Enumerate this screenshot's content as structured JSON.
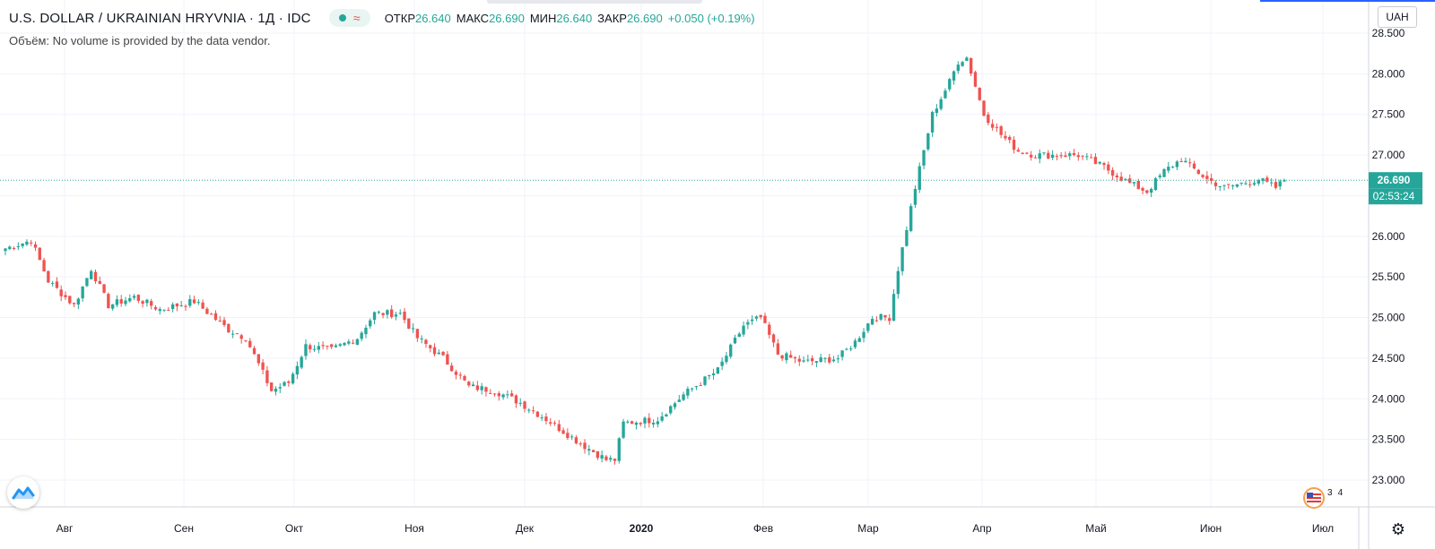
{
  "header": {
    "title": "U.S. DOLLAR / UKRAINIAN HRYVNIA · 1Д · IDC",
    "ohlc": {
      "open_label": "ОТКР",
      "open": "26.640",
      "high_label": "МАКС",
      "high": "26.690",
      "low_label": "МИН",
      "low": "26.640",
      "close_label": "ЗАКР",
      "close": "26.690",
      "change": "+0.050 (+0.19%)"
    }
  },
  "volume_note": "Объём: No volume is provided by the data vendor.",
  "unit_button": "UAH",
  "price_tag": {
    "price": "26.690",
    "countdown": "02:53:24"
  },
  "badge_text": "3   4",
  "colors": {
    "up": "#26a69a",
    "down": "#ef5350",
    "grid": "#f0f3fa",
    "axis_text": "#131722",
    "tag": "#26a69a"
  },
  "icons": {
    "logo": "tradingview-logo-icon",
    "settings": "gear-icon",
    "alert": "wave-icon"
  },
  "chart_data": {
    "type": "candlestick",
    "title": "U.S. DOLLAR / UKRAINIAN HRYVNIA",
    "ylim": [
      22.85,
      28.6
    ],
    "y_ticks": [
      23.0,
      23.5,
      24.0,
      24.5,
      25.0,
      25.5,
      26.0,
      26.5,
      27.0,
      27.5,
      28.0,
      28.5
    ],
    "y_tick_labels": [
      "23.000",
      "23.500",
      "24.000",
      "24.500",
      "25.000",
      "25.500",
      "26.000",
      "26.500",
      "27.000",
      "27.500",
      "28.000",
      "28.500"
    ],
    "x_labels": [
      "Авг",
      "Сен",
      "Окт",
      "Ноя",
      "Дек",
      "2020",
      "Фев",
      "Мар",
      "Апр",
      "Май",
      "Июн",
      "Июл"
    ],
    "last_price": 26.69,
    "grid": true,
    "waypoints": [
      [
        0,
        25.85
      ],
      [
        6,
        25.95
      ],
      [
        10,
        25.45
      ],
      [
        16,
        25.15
      ],
      [
        20,
        25.6
      ],
      [
        24,
        25.15
      ],
      [
        30,
        25.25
      ],
      [
        36,
        25.1
      ],
      [
        44,
        25.2
      ],
      [
        52,
        24.85
      ],
      [
        56,
        24.75
      ],
      [
        62,
        24.1
      ],
      [
        66,
        24.2
      ],
      [
        70,
        24.65
      ],
      [
        76,
        24.6
      ],
      [
        82,
        24.75
      ],
      [
        86,
        25.05
      ],
      [
        92,
        25.05
      ],
      [
        96,
        24.75
      ],
      [
        102,
        24.5
      ],
      [
        108,
        24.15
      ],
      [
        114,
        24.1
      ],
      [
        120,
        23.95
      ],
      [
        126,
        23.75
      ],
      [
        134,
        23.45
      ],
      [
        140,
        23.25
      ],
      [
        142,
        23.25
      ],
      [
        144,
        23.7
      ],
      [
        152,
        23.75
      ],
      [
        158,
        24.05
      ],
      [
        166,
        24.35
      ],
      [
        172,
        24.9
      ],
      [
        176,
        25.0
      ],
      [
        180,
        24.55
      ],
      [
        186,
        24.45
      ],
      [
        194,
        24.5
      ],
      [
        198,
        24.7
      ],
      [
        202,
        25.0
      ],
      [
        206,
        25.0
      ],
      [
        208,
        25.6
      ],
      [
        212,
        26.6
      ],
      [
        216,
        27.5
      ],
      [
        220,
        27.9
      ],
      [
        222,
        28.15
      ],
      [
        224,
        28.2
      ],
      [
        228,
        27.5
      ],
      [
        232,
        27.25
      ],
      [
        236,
        27.05
      ],
      [
        240,
        27.0
      ],
      [
        250,
        27.0
      ],
      [
        256,
        26.85
      ],
      [
        262,
        26.65
      ],
      [
        266,
        26.55
      ],
      [
        270,
        26.8
      ],
      [
        274,
        26.95
      ],
      [
        280,
        26.7
      ],
      [
        284,
        26.6
      ],
      [
        288,
        26.65
      ],
      [
        292,
        26.7
      ],
      [
        296,
        26.6
      ],
      [
        298,
        26.69
      ]
    ]
  }
}
